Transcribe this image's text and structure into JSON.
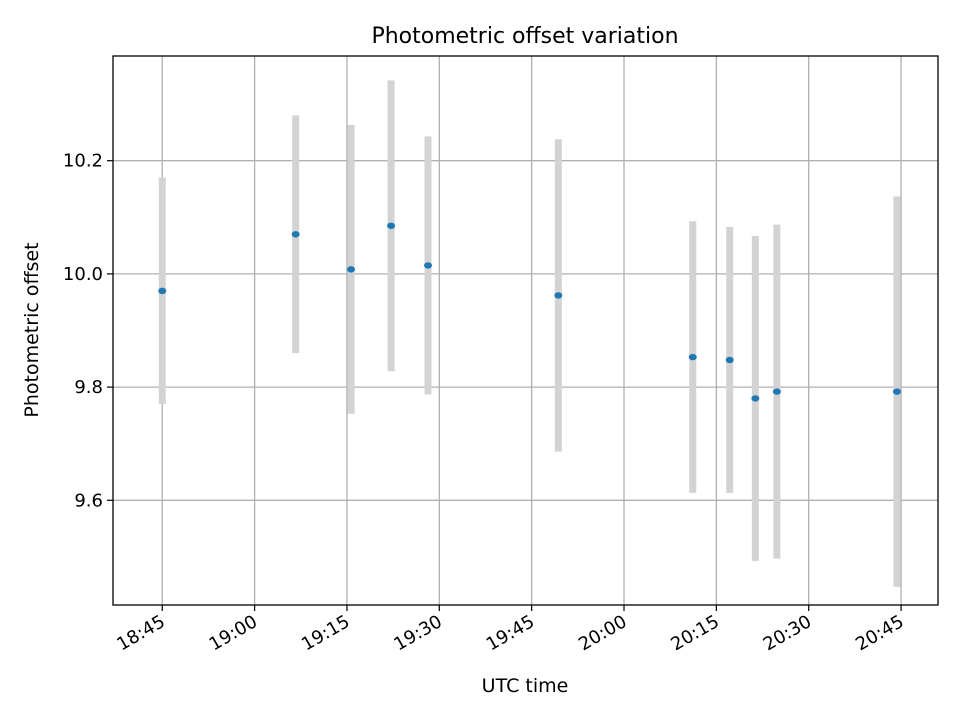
{
  "chart_data": {
    "type": "scatter",
    "title": "Photometric offset variation",
    "xlabel": "UTC time",
    "ylabel": "Photometric offset",
    "grid": true,
    "xlim": [
      "18:37",
      "20:51"
    ],
    "ylim": [
      9.415,
      10.385
    ],
    "x_ticks": [
      "18:45",
      "19:00",
      "19:15",
      "19:30",
      "19:45",
      "20:00",
      "20:15",
      "20:30",
      "20:45"
    ],
    "y_ticks": [
      9.6,
      9.8,
      10.0,
      10.2
    ],
    "y_tick_labels": [
      "9.6",
      "9.8",
      "10.0",
      "10.2"
    ],
    "colors": {
      "point": "#1f77b4",
      "error_bar": "#d3d3d3",
      "grid": "#b0b0b0"
    },
    "series": [
      {
        "points": [
          {
            "x": "18:45:00",
            "y": 9.97,
            "err": 0.2
          },
          {
            "x": "19:06:40",
            "y": 10.07,
            "err": 0.21
          },
          {
            "x": "19:15:40",
            "y": 10.008,
            "err": 0.255
          },
          {
            "x": "19:22:10",
            "y": 10.085,
            "err": 0.257
          },
          {
            "x": "19:28:10",
            "y": 10.015,
            "err": 0.228
          },
          {
            "x": "19:49:20",
            "y": 9.962,
            "err": 0.276
          },
          {
            "x": "20:11:10",
            "y": 9.853,
            "err": 0.24
          },
          {
            "x": "20:17:10",
            "y": 9.848,
            "err": 0.235
          },
          {
            "x": "20:21:20",
            "y": 9.78,
            "err": 0.287
          },
          {
            "x": "20:24:50",
            "y": 9.792,
            "err": 0.295
          },
          {
            "x": "20:44:20",
            "y": 9.792,
            "err": 0.345
          }
        ]
      }
    ]
  }
}
